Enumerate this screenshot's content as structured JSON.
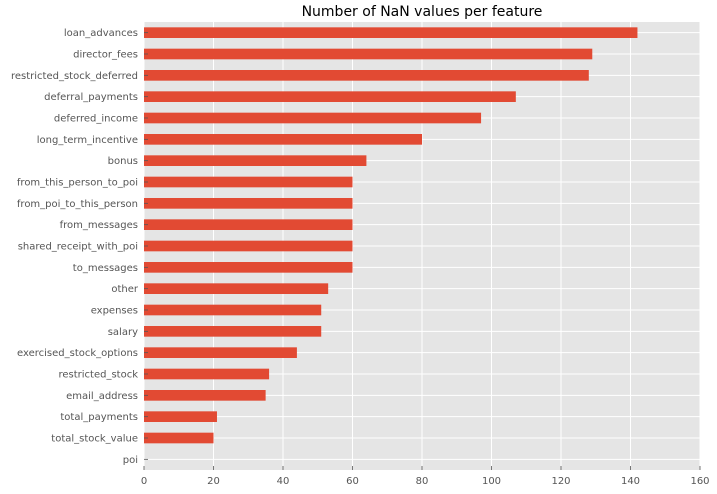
{
  "chart_data": {
    "type": "bar",
    "orientation": "horizontal",
    "title": "Number of NaN values per feature",
    "xlabel": "",
    "ylabel": "",
    "xlim": [
      0,
      160
    ],
    "xticks": [
      0,
      20,
      40,
      60,
      80,
      100,
      120,
      140,
      160
    ],
    "grid": true,
    "colors": {
      "bar": "#e24a33",
      "background": "#e5e5e5",
      "grid": "#ffffff"
    },
    "categories": [
      "loan_advances",
      "director_fees",
      "restricted_stock_deferred",
      "deferral_payments",
      "deferred_income",
      "long_term_incentive",
      "bonus",
      "from_this_person_to_poi",
      "from_poi_to_this_person",
      "from_messages",
      "shared_receipt_with_poi",
      "to_messages",
      "other",
      "expenses",
      "salary",
      "exercised_stock_options",
      "restricted_stock",
      "email_address",
      "total_payments",
      "total_stock_value",
      "poi"
    ],
    "values": [
      142,
      129,
      128,
      107,
      97,
      80,
      64,
      60,
      60,
      60,
      60,
      60,
      53,
      51,
      51,
      44,
      36,
      35,
      21,
      20,
      0
    ]
  }
}
